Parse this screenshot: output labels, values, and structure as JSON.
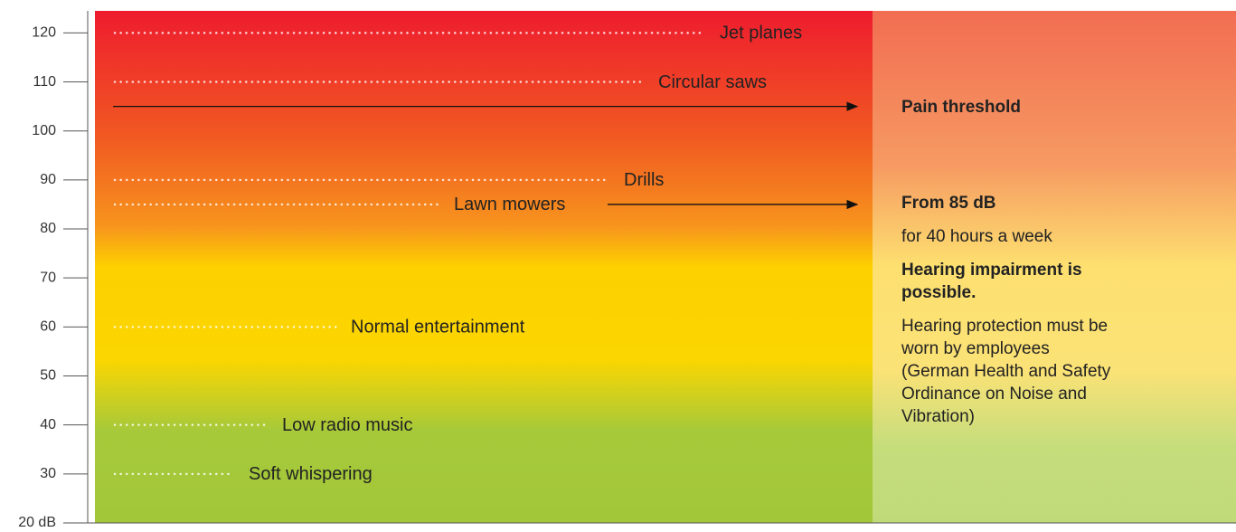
{
  "chart_data": {
    "type": "level_scale",
    "categories": [
      "Jet planes",
      "Circular saws",
      "Drills",
      "Lawn mowers",
      "Normal entertainment",
      "Low radio music",
      "Soft whispering"
    ],
    "values": [
      120,
      110,
      90,
      85,
      60,
      40,
      30
    ],
    "ylim": [
      20,
      124.5
    ],
    "yticks": [
      {
        "value": 20,
        "label": "20 dB"
      },
      30,
      40,
      50,
      60,
      70,
      80,
      90,
      100,
      110,
      120
    ],
    "thresholds": [
      {
        "value": 105,
        "label": "Pain threshold"
      },
      {
        "value": 85,
        "label": "From 85 dB"
      }
    ],
    "notes": [
      "for 40 hours a week",
      "Hearing impairment is possible.",
      "Hearing protection must be worn by employees (German Health and Safety Ordinance on Noise and Vibration)"
    ]
  }
}
